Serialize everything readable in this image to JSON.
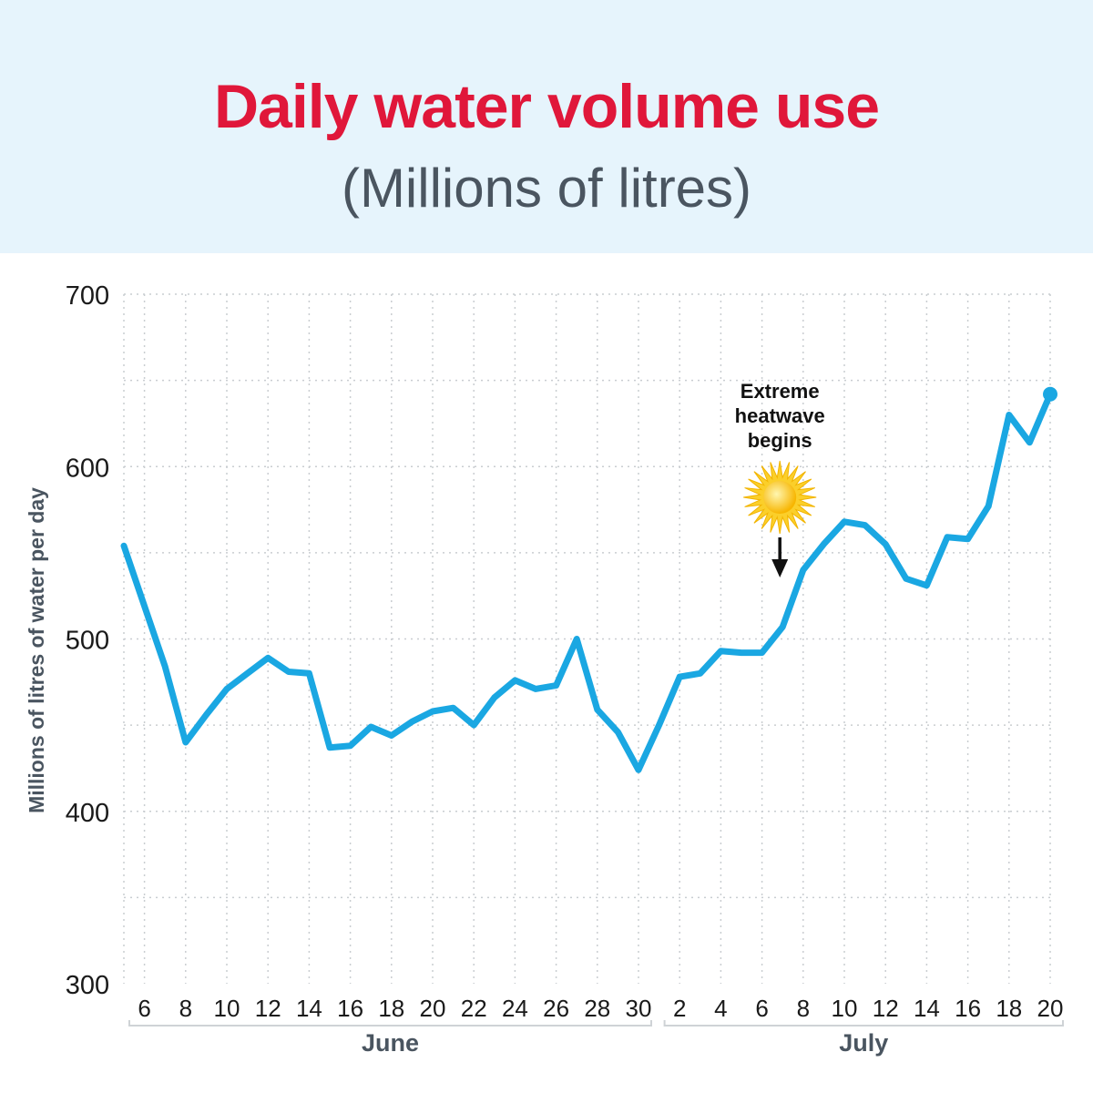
{
  "header": {
    "title": "Daily water volume use",
    "subtitle": "(Millions of litres)"
  },
  "chart_data": {
    "type": "line",
    "ylabel": "Millions of litres of water per day",
    "ylim": [
      300,
      700
    ],
    "yticks": [
      300,
      400,
      500,
      600,
      700
    ],
    "grid": true,
    "x": [
      "Jun 5",
      "Jun 6",
      "Jun 7",
      "Jun 8",
      "Jun 9",
      "Jun 10",
      "Jun 11",
      "Jun 12",
      "Jun 13",
      "Jun 14",
      "Jun 15",
      "Jun 16",
      "Jun 17",
      "Jun 18",
      "Jun 19",
      "Jun 20",
      "Jun 21",
      "Jun 22",
      "Jun 23",
      "Jun 24",
      "Jun 25",
      "Jun 26",
      "Jun 27",
      "Jun 28",
      "Jun 29",
      "Jun 30",
      "Jul 1",
      "Jul 2",
      "Jul 3",
      "Jul 4",
      "Jul 5",
      "Jul 6",
      "Jul 7",
      "Jul 8",
      "Jul 9",
      "Jul 10",
      "Jul 11",
      "Jul 12",
      "Jul 13",
      "Jul 14",
      "Jul 15",
      "Jul 16",
      "Jul 17",
      "Jul 18",
      "Jul 19",
      "Jul 20"
    ],
    "series": [
      {
        "values": [
          554,
          519,
          484,
          440,
          456,
          471,
          480,
          489,
          481,
          480,
          437,
          438,
          449,
          444,
          452,
          458,
          460,
          450,
          466,
          476,
          471,
          473,
          500,
          459,
          446,
          424,
          450,
          478,
          480,
          493,
          492,
          492,
          507,
          540,
          555,
          568,
          566,
          555,
          535,
          531,
          559,
          558,
          577,
          630,
          614,
          642
        ],
        "color": "#1aa7e2"
      }
    ],
    "x_tick_labels": [
      {
        "x": "Jun 6",
        "label": "6"
      },
      {
        "x": "Jun 8",
        "label": "8"
      },
      {
        "x": "Jun 10",
        "label": "10"
      },
      {
        "x": "Jun 12",
        "label": "12"
      },
      {
        "x": "Jun 14",
        "label": "14"
      },
      {
        "x": "Jun 16",
        "label": "16"
      },
      {
        "x": "Jun 18",
        "label": "18"
      },
      {
        "x": "Jun 20",
        "label": "20"
      },
      {
        "x": "Jun 22",
        "label": "22"
      },
      {
        "x": "Jun 24",
        "label": "24"
      },
      {
        "x": "Jun 26",
        "label": "26"
      },
      {
        "x": "Jun 28",
        "label": "28"
      },
      {
        "x": "Jun 30",
        "label": "30"
      },
      {
        "x": "Jul 2",
        "label": "2"
      },
      {
        "x": "Jul 4",
        "label": "4"
      },
      {
        "x": "Jul 6",
        "label": "6"
      },
      {
        "x": "Jul 8",
        "label": "8"
      },
      {
        "x": "Jul 10",
        "label": "10"
      },
      {
        "x": "Jul 12",
        "label": "12"
      },
      {
        "x": "Jul 14",
        "label": "14"
      },
      {
        "x": "Jul 16",
        "label": "16"
      },
      {
        "x": "Jul 18",
        "label": "18"
      },
      {
        "x": "Jul 20",
        "label": "20"
      }
    ],
    "month_groups": [
      {
        "label": "June",
        "from": "Jun 5",
        "to": "Jun 30"
      },
      {
        "label": "July",
        "from": "Jul 1",
        "to": "Jul 20"
      }
    ],
    "annotations": [
      {
        "x": "Jul 7",
        "lines": [
          "Extreme",
          "heatwave",
          "begins"
        ],
        "icon": "sun-icon",
        "arrow": "down-arrow-icon"
      }
    ]
  }
}
